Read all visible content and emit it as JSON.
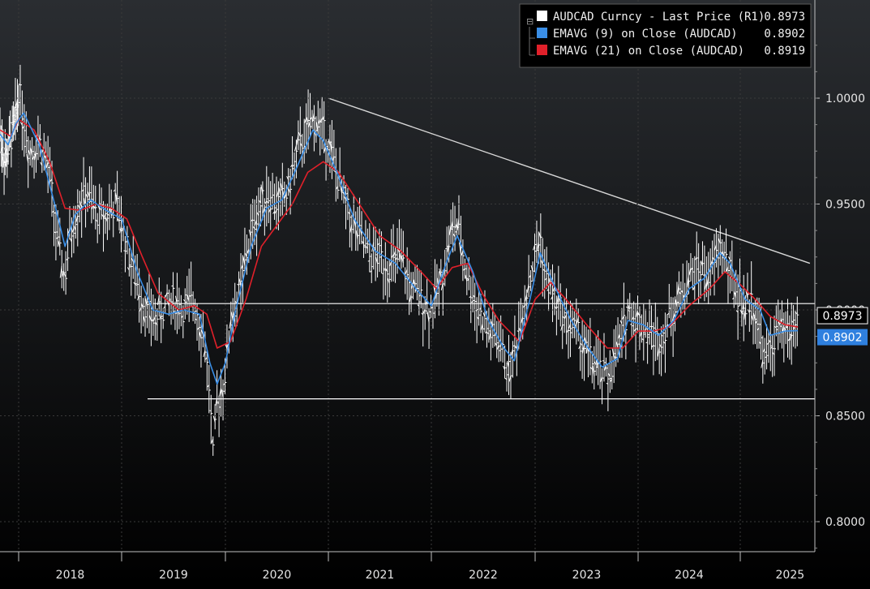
{
  "colors": {
    "background_top": "#2a2d31",
    "background_bottom": "#000000",
    "price": "#ffffff",
    "ema9": "#3a8ee6",
    "ema21": "#e0202a",
    "grid": "#3a3a3a",
    "reference_lines": "#ffffff",
    "badge_price_bg": "#000000",
    "badge_ema9_bg": "#2f80df"
  },
  "legend": {
    "items": [
      {
        "label": "AUDCAD Curncy - Last Price (R1)",
        "value": "0.8973",
        "color": "#ffffff"
      },
      {
        "label": "EMAVG (9)  on Close (AUDCAD)",
        "value": "0.8902",
        "color": "#3a8ee6"
      },
      {
        "label": "EMAVG (21)  on Close (AUDCAD)",
        "value": "0.8919",
        "color": "#e0202a"
      }
    ]
  },
  "badges": {
    "price": "0.8973",
    "ema9": "0.8902"
  },
  "chart_data": {
    "type": "line",
    "ticker": "AUDCAD Curncy",
    "x_labels": [
      "2018",
      "2019",
      "2020",
      "2021",
      "2022",
      "2023",
      "2024",
      "2025"
    ],
    "ylim": [
      0.775,
      1.03
    ],
    "y_ticks": [
      "0.8000",
      "0.8500",
      "0.9000",
      "0.9500",
      "1.0000"
    ],
    "y_tick_values": [
      0.8,
      0.85,
      0.9,
      0.95,
      1.0
    ],
    "grid": "vertical-dashed at year boundaries",
    "legend_position": "top-right",
    "reference_lines": [
      {
        "type": "horizontal",
        "y": 0.903,
        "x_start": "2019.3"
      },
      {
        "type": "horizontal",
        "y": 0.858,
        "x_start": "2019.25"
      },
      {
        "type": "trend",
        "from": {
          "x": "2021.0",
          "y": 1.0
        },
        "to": {
          "x": "2025.7",
          "y": 0.922
        }
      }
    ],
    "series": [
      {
        "name": "AUDCAD Curncy - Last Price (R1)",
        "style": "weekly-bars",
        "points": [
          [
            2017.65,
            0.985
          ],
          [
            2017.75,
            0.97
          ],
          [
            2017.85,
            0.98
          ],
          [
            2017.95,
            0.99
          ],
          [
            2018.0,
            1.005
          ],
          [
            2018.1,
            0.975
          ],
          [
            2018.2,
            0.98
          ],
          [
            2018.3,
            0.965
          ],
          [
            2018.38,
            0.93
          ],
          [
            2018.45,
            0.915
          ],
          [
            2018.5,
            0.935
          ],
          [
            2018.58,
            0.95
          ],
          [
            2018.66,
            0.955
          ],
          [
            2018.75,
            0.945
          ],
          [
            2018.85,
            0.945
          ],
          [
            2018.95,
            0.95
          ],
          [
            2019.0,
            0.94
          ],
          [
            2019.1,
            0.92
          ],
          [
            2019.2,
            0.905
          ],
          [
            2019.3,
            0.895
          ],
          [
            2019.4,
            0.9
          ],
          [
            2019.5,
            0.905
          ],
          [
            2019.6,
            0.9
          ],
          [
            2019.7,
            0.905
          ],
          [
            2019.8,
            0.885
          ],
          [
            2019.85,
            0.86
          ],
          [
            2019.88,
            0.83
          ],
          [
            2019.92,
            0.855
          ],
          [
            2020.0,
            0.87
          ],
          [
            2020.05,
            0.895
          ],
          [
            2020.15,
            0.91
          ],
          [
            2020.2,
            0.925
          ],
          [
            2020.3,
            0.945
          ],
          [
            2020.4,
            0.955
          ],
          [
            2020.5,
            0.95
          ],
          [
            2020.6,
            0.955
          ],
          [
            2020.7,
            0.975
          ],
          [
            2020.8,
            0.985
          ],
          [
            2020.88,
            0.99
          ],
          [
            2021.0,
            0.98
          ],
          [
            2021.1,
            0.96
          ],
          [
            2021.2,
            0.945
          ],
          [
            2021.3,
            0.935
          ],
          [
            2021.4,
            0.925
          ],
          [
            2021.5,
            0.925
          ],
          [
            2021.6,
            0.92
          ],
          [
            2021.7,
            0.925
          ],
          [
            2021.8,
            0.91
          ],
          [
            2021.9,
            0.905
          ],
          [
            2022.0,
            0.9
          ],
          [
            2022.1,
            0.915
          ],
          [
            2022.18,
            0.935
          ],
          [
            2022.25,
            0.94
          ],
          [
            2022.35,
            0.915
          ],
          [
            2022.45,
            0.9
          ],
          [
            2022.55,
            0.89
          ],
          [
            2022.65,
            0.885
          ],
          [
            2022.75,
            0.87
          ],
          [
            2022.8,
            0.88
          ],
          [
            2022.9,
            0.905
          ],
          [
            2023.0,
            0.925
          ],
          [
            2023.05,
            0.935
          ],
          [
            2023.1,
            0.915
          ],
          [
            2023.2,
            0.905
          ],
          [
            2023.3,
            0.895
          ],
          [
            2023.4,
            0.89
          ],
          [
            2023.5,
            0.88
          ],
          [
            2023.6,
            0.872
          ],
          [
            2023.7,
            0.868
          ],
          [
            2023.8,
            0.88
          ],
          [
            2023.9,
            0.9
          ],
          [
            2024.0,
            0.895
          ],
          [
            2024.1,
            0.89
          ],
          [
            2024.2,
            0.885
          ],
          [
            2024.3,
            0.895
          ],
          [
            2024.4,
            0.905
          ],
          [
            2024.5,
            0.915
          ],
          [
            2024.6,
            0.92
          ],
          [
            2024.7,
            0.915
          ],
          [
            2024.8,
            0.93
          ],
          [
            2024.85,
            0.925
          ],
          [
            2024.95,
            0.91
          ],
          [
            2025.05,
            0.9
          ],
          [
            2025.1,
            0.905
          ],
          [
            2025.15,
            0.9
          ],
          [
            2025.25,
            0.875
          ],
          [
            2025.32,
            0.885
          ],
          [
            2025.4,
            0.89
          ],
          [
            2025.5,
            0.888
          ],
          [
            2025.58,
            0.8973
          ]
        ]
      },
      {
        "name": "EMAVG (9)  on Close (AUDCAD)",
        "style": "line",
        "points": [
          [
            2017.65,
            0.983
          ],
          [
            2017.8,
            0.978
          ],
          [
            2017.95,
            0.988
          ],
          [
            2018.05,
            0.993
          ],
          [
            2018.2,
            0.978
          ],
          [
            2018.35,
            0.95
          ],
          [
            2018.45,
            0.93
          ],
          [
            2018.55,
            0.945
          ],
          [
            2018.7,
            0.952
          ],
          [
            2018.85,
            0.947
          ],
          [
            2019.0,
            0.943
          ],
          [
            2019.15,
            0.918
          ],
          [
            2019.3,
            0.9
          ],
          [
            2019.45,
            0.898
          ],
          [
            2019.6,
            0.9
          ],
          [
            2019.75,
            0.898
          ],
          [
            2019.85,
            0.875
          ],
          [
            2019.92,
            0.865
          ],
          [
            2020.0,
            0.875
          ],
          [
            2020.1,
            0.9
          ],
          [
            2020.25,
            0.93
          ],
          [
            2020.4,
            0.948
          ],
          [
            2020.55,
            0.952
          ],
          [
            2020.7,
            0.968
          ],
          [
            2020.85,
            0.985
          ],
          [
            2020.95,
            0.98
          ],
          [
            2021.1,
            0.963
          ],
          [
            2021.25,
            0.943
          ],
          [
            2021.45,
            0.928
          ],
          [
            2021.65,
            0.922
          ],
          [
            2021.85,
            0.91
          ],
          [
            2022.0,
            0.902
          ],
          [
            2022.15,
            0.923
          ],
          [
            2022.25,
            0.935
          ],
          [
            2022.4,
            0.918
          ],
          [
            2022.55,
            0.895
          ],
          [
            2022.7,
            0.882
          ],
          [
            2022.8,
            0.876
          ],
          [
            2022.95,
            0.905
          ],
          [
            2023.05,
            0.927
          ],
          [
            2023.2,
            0.91
          ],
          [
            2023.35,
            0.895
          ],
          [
            2023.5,
            0.883
          ],
          [
            2023.65,
            0.873
          ],
          [
            2023.8,
            0.877
          ],
          [
            2023.9,
            0.895
          ],
          [
            2024.05,
            0.893
          ],
          [
            2024.2,
            0.888
          ],
          [
            2024.35,
            0.895
          ],
          [
            2024.5,
            0.91
          ],
          [
            2024.65,
            0.915
          ],
          [
            2024.8,
            0.927
          ],
          [
            2024.9,
            0.922
          ],
          [
            2025.05,
            0.905
          ],
          [
            2025.2,
            0.9
          ],
          [
            2025.3,
            0.888
          ],
          [
            2025.45,
            0.89
          ],
          [
            2025.58,
            0.8902
          ]
        ]
      },
      {
        "name": "EMAVG (21)  on Close (AUDCAD)",
        "style": "line",
        "points": [
          [
            2017.65,
            0.985
          ],
          [
            2017.85,
            0.982
          ],
          [
            2018.0,
            0.99
          ],
          [
            2018.15,
            0.985
          ],
          [
            2018.3,
            0.97
          ],
          [
            2018.45,
            0.948
          ],
          [
            2018.6,
            0.947
          ],
          [
            2018.75,
            0.95
          ],
          [
            2018.9,
            0.948
          ],
          [
            2019.05,
            0.943
          ],
          [
            2019.2,
            0.925
          ],
          [
            2019.35,
            0.908
          ],
          [
            2019.55,
            0.9
          ],
          [
            2019.7,
            0.902
          ],
          [
            2019.82,
            0.898
          ],
          [
            2019.92,
            0.882
          ],
          [
            2020.05,
            0.885
          ],
          [
            2020.2,
            0.905
          ],
          [
            2020.35,
            0.93
          ],
          [
            2020.5,
            0.94
          ],
          [
            2020.65,
            0.95
          ],
          [
            2020.8,
            0.965
          ],
          [
            2020.95,
            0.97
          ],
          [
            2021.1,
            0.965
          ],
          [
            2021.3,
            0.95
          ],
          [
            2021.5,
            0.935
          ],
          [
            2021.7,
            0.928
          ],
          [
            2021.9,
            0.918
          ],
          [
            2022.05,
            0.91
          ],
          [
            2022.2,
            0.92
          ],
          [
            2022.35,
            0.922
          ],
          [
            2022.5,
            0.907
          ],
          [
            2022.65,
            0.895
          ],
          [
            2022.85,
            0.885
          ],
          [
            2023.0,
            0.905
          ],
          [
            2023.15,
            0.913
          ],
          [
            2023.3,
            0.905
          ],
          [
            2023.5,
            0.893
          ],
          [
            2023.7,
            0.882
          ],
          [
            2023.85,
            0.882
          ],
          [
            2024.0,
            0.89
          ],
          [
            2024.15,
            0.89
          ],
          [
            2024.3,
            0.892
          ],
          [
            2024.5,
            0.902
          ],
          [
            2024.7,
            0.91
          ],
          [
            2024.85,
            0.918
          ],
          [
            2025.0,
            0.912
          ],
          [
            2025.15,
            0.905
          ],
          [
            2025.3,
            0.897
          ],
          [
            2025.45,
            0.893
          ],
          [
            2025.58,
            0.8919
          ]
        ]
      }
    ]
  }
}
